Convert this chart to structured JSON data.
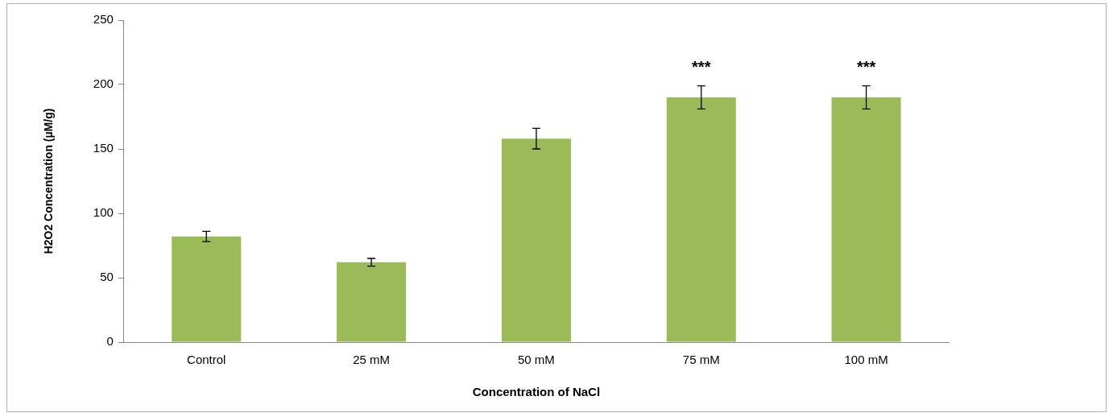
{
  "chart_data": {
    "type": "bar",
    "xlabel": "Concentration of NaCl",
    "ylabel": "H2O2 Concentration (µM/g)",
    "categories": [
      "Control",
      "25 mM",
      "50 mM",
      "75 mM",
      "100 mM"
    ],
    "values": [
      82,
      62,
      158,
      190,
      190
    ],
    "errors": [
      4,
      3,
      8,
      9,
      9
    ],
    "color": "#9bbb59",
    "ylim": [
      0,
      250
    ],
    "yticks": [
      0,
      50,
      100,
      150,
      200,
      250
    ],
    "grid": false,
    "legend": false,
    "annotations": [
      {
        "text": "***",
        "x": "75 mM",
        "y": 190
      },
      {
        "text": "***",
        "x": "100 mM",
        "y": 190
      }
    ]
  }
}
